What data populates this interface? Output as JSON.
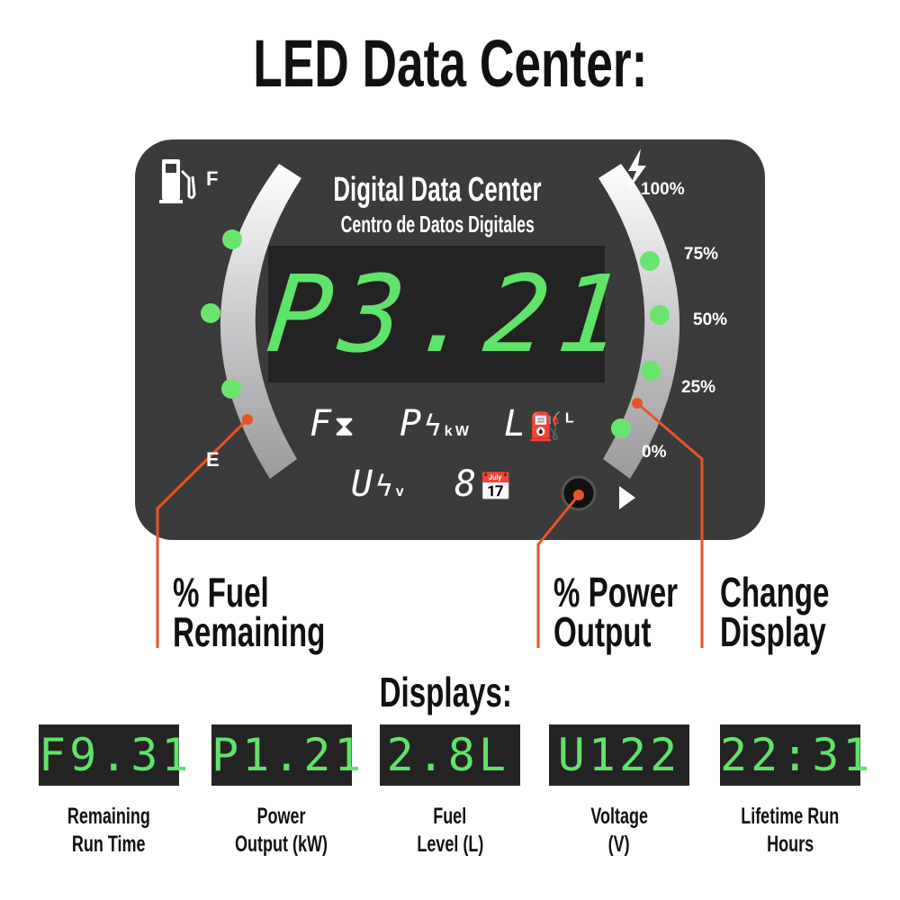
{
  "title": "LED Data Center:",
  "panel": {
    "heading": "Digital Data Center",
    "subheading": "Centro de Datos Digitales",
    "main_display": "P3.21",
    "fuel_gauge": {
      "full_label": "F",
      "empty_label": "E",
      "icon": "fuel-pump-icon"
    },
    "power_gauge": {
      "icon": "lightning-icon",
      "labels": [
        "100%",
        "75%",
        "50%",
        "25%",
        "0%"
      ]
    },
    "modes": [
      {
        "letter": "F",
        "icon": "hourglass-icon",
        "unit": ""
      },
      {
        "letter": "P",
        "icon": "lightning-icon",
        "unit": "kW"
      },
      {
        "letter": "L",
        "icon": "fuel-pump-icon",
        "unit": "L"
      },
      {
        "letter": "U",
        "icon": "lightning-icon",
        "unit": "v"
      },
      {
        "letter": "8",
        "icon": "calendar-clock-icon",
        "unit": ""
      }
    ],
    "button_icon": "play-arrow-icon"
  },
  "callouts": {
    "fuel": [
      "% Fuel",
      "Remaining"
    ],
    "power": [
      "% Power",
      "Output"
    ],
    "change": [
      "Change",
      "Display"
    ]
  },
  "colors": {
    "panel": "#3b3b3b",
    "lcd_green": "#5fe36a",
    "callout_line": "#e8532a"
  },
  "displays_title": "Displays:",
  "displays": [
    {
      "value": "F9.31",
      "label": [
        "Remaining",
        "Run Time"
      ]
    },
    {
      "value": "P1.21",
      "label": [
        "Power",
        "Output (kW)"
      ]
    },
    {
      "value": "2.8L",
      "label": [
        "Fuel",
        "Level (L)"
      ]
    },
    {
      "value": "U122",
      "label": [
        "Voltage",
        "(V)"
      ]
    },
    {
      "value": "22:31",
      "label": [
        "Lifetime Run",
        "Hours"
      ]
    }
  ]
}
